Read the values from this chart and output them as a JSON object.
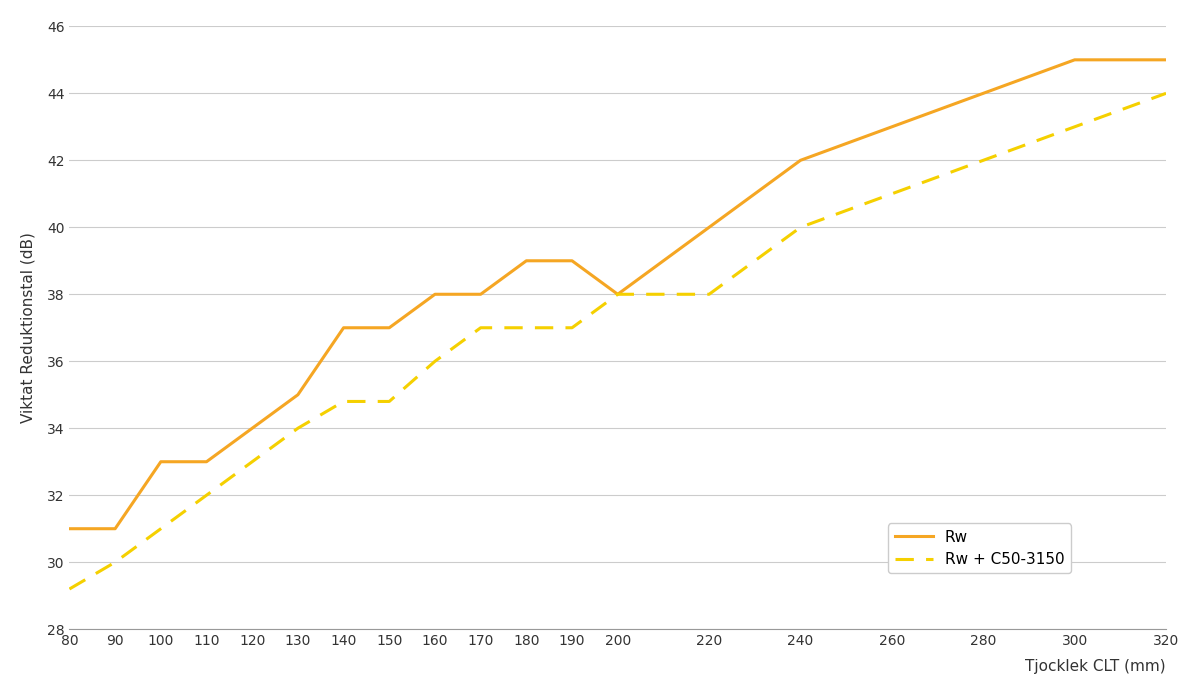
{
  "rw_x": [
    80,
    90,
    100,
    110,
    120,
    130,
    140,
    150,
    160,
    170,
    180,
    190,
    200,
    220,
    240,
    260,
    280,
    300,
    320
  ],
  "rw_y": [
    31,
    31,
    33,
    33,
    34,
    35,
    37,
    37,
    38,
    38,
    39,
    39,
    38,
    40,
    42,
    43,
    44,
    45,
    45
  ],
  "rw_c_x": [
    80,
    90,
    100,
    110,
    120,
    130,
    140,
    150,
    160,
    170,
    180,
    190,
    200,
    220,
    240,
    260,
    280,
    300,
    320
  ],
  "rw_c_y": [
    29.2,
    30,
    31,
    32,
    33,
    34,
    34.8,
    34.8,
    36,
    37,
    37,
    37,
    38,
    38,
    40,
    41,
    42,
    43,
    44
  ],
  "rw_color": "#F5A623",
  "rw_c_color": "#F5D000",
  "ylabel": "Viktat Reduktionstal (dB)",
  "xlabel": "Tjocklek CLT (mm)",
  "ylim": [
    28,
    46
  ],
  "yticks": [
    28,
    30,
    32,
    34,
    36,
    38,
    40,
    42,
    44,
    46
  ],
  "xticks": [
    80,
    90,
    100,
    110,
    120,
    130,
    140,
    150,
    160,
    170,
    180,
    190,
    200,
    220,
    240,
    260,
    280,
    300,
    320
  ],
  "legend_rw": "Rw",
  "legend_rw_c": "Rw + C50-3150",
  "bg_color": "#FFFFFF",
  "grid_color": "#CCCCCC"
}
